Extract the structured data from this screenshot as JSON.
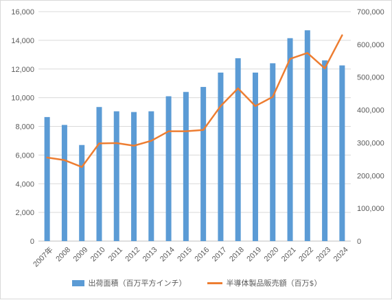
{
  "chart_data": {
    "type": "bar+line",
    "categories": [
      "2007年",
      "2008",
      "2009",
      "2010",
      "2011",
      "2012",
      "2013",
      "2014",
      "2015",
      "2016",
      "2017",
      "2018",
      "2019",
      "2020",
      "2021",
      "2022",
      "2023",
      "2024"
    ],
    "series": [
      {
        "name": "出荷面積（百万平方インチ）",
        "type": "bar",
        "axis": "left",
        "color": "#5b9bd5",
        "values": [
          8650,
          8100,
          6700,
          9350,
          9050,
          9000,
          9050,
          10100,
          10400,
          10750,
          11750,
          12750,
          11750,
          12400,
          14150,
          14700,
          12600,
          12250
        ]
      },
      {
        "name": "半導体製品販売額（百万$）",
        "type": "line",
        "axis": "right",
        "color": "#ed7d31",
        "values": [
          255000,
          247000,
          226000,
          298000,
          299000,
          291000,
          306000,
          335000,
          335000,
          339000,
          412000,
          466000,
          412000,
          440000,
          556000,
          574000,
          527000,
          628000
        ]
      }
    ],
    "y_left": {
      "min": 0,
      "max": 16000,
      "step": 2000,
      "ticks": [
        "0",
        "2,000",
        "4,000",
        "6,000",
        "8,000",
        "10,000",
        "12,000",
        "14,000",
        "16,000"
      ]
    },
    "y_right": {
      "min": 0,
      "max": 700000,
      "step": 100000,
      "ticks": [
        "0",
        "100,000",
        "200,000",
        "300,000",
        "400,000",
        "500,000",
        "600,000",
        "700,000"
      ]
    },
    "grid": true,
    "legend": "bottom"
  }
}
